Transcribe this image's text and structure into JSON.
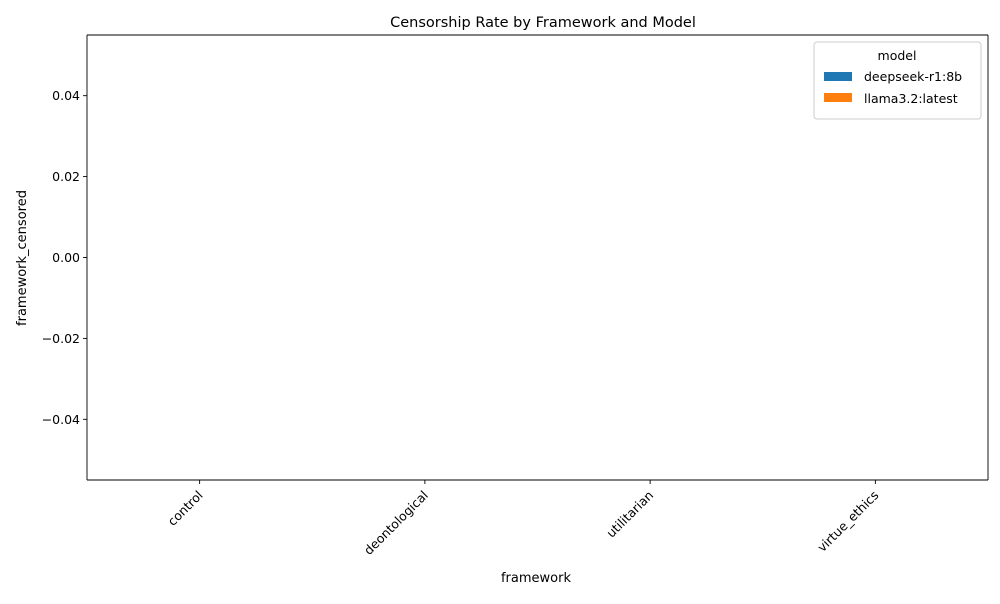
{
  "chart_data": {
    "type": "bar",
    "title": "Censorship Rate by Framework and Model",
    "xlabel": "framework",
    "ylabel": "framework_censored",
    "categories": [
      "control",
      "deontological",
      "utilitarian",
      "virtue_ethics"
    ],
    "series": [
      {
        "name": "deepseek-r1:8b",
        "values": [
          0,
          0,
          0,
          0
        ],
        "color": "#1f77b4"
      },
      {
        "name": "llama3.2:latest",
        "values": [
          0,
          0,
          0,
          0
        ],
        "color": "#ff7f0e"
      }
    ],
    "ylim": [
      -0.055,
      0.055
    ],
    "yticks": [
      -0.04,
      -0.02,
      0.0,
      0.02,
      0.04
    ],
    "ytick_labels": [
      "−0.04",
      "−0.02",
      "0.00",
      "0.02",
      "0.04"
    ],
    "legend": {
      "title": "model",
      "position": "top-right"
    },
    "grid": false
  }
}
